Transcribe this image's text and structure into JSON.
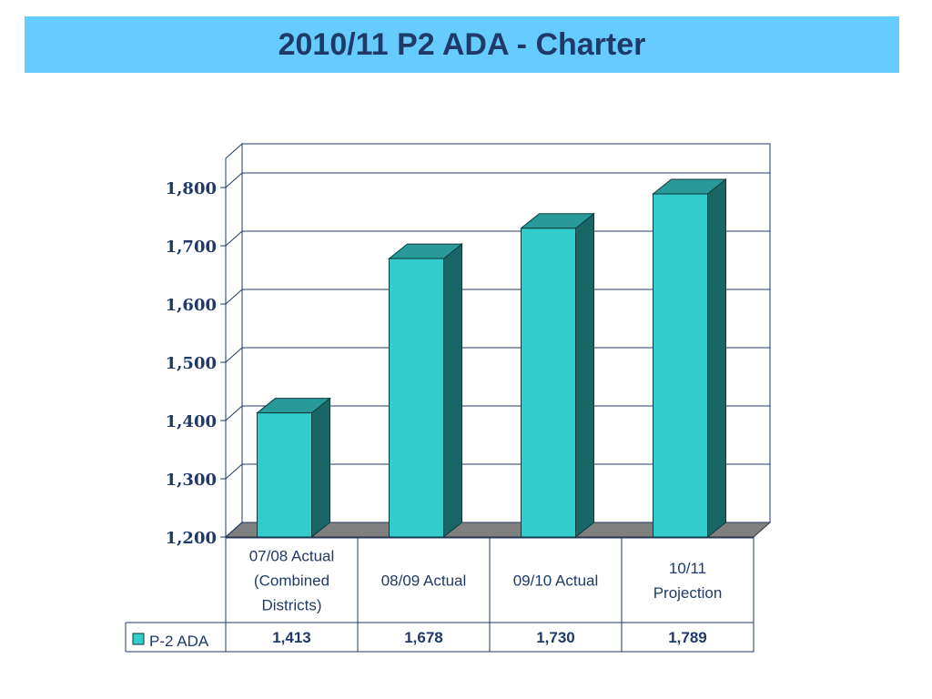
{
  "title": "2010/11 P2 ADA - Charter",
  "colors": {
    "title_bg": "#66ccff",
    "title_text": "#1f3a68",
    "bar_front": "#33cccc",
    "bar_top": "#2a9999",
    "bar_side": "#1a6666",
    "floor": "#808080",
    "grid": "#1f3a68"
  },
  "chart_data": {
    "type": "bar",
    "title": "2010/11 P2 ADA - Charter",
    "categories": [
      [
        "07/08 Actual",
        "(Combined",
        "Districts)"
      ],
      [
        "08/09 Actual"
      ],
      [
        "09/10 Actual"
      ],
      [
        "10/11",
        "Projection"
      ]
    ],
    "series": [
      {
        "name": "P-2 ADA",
        "values": [
          1413,
          1678,
          1730,
          1789
        ],
        "value_labels": [
          "1,413",
          "1,678",
          "1,730",
          "1,789"
        ]
      }
    ],
    "ylim": [
      1200,
      1850
    ],
    "yticks": [
      1200,
      1300,
      1400,
      1500,
      1600,
      1700,
      1800
    ],
    "ytick_labels": [
      "1,200",
      "1,300",
      "1,400",
      "1,500",
      "1,600",
      "1,700",
      "1,800"
    ],
    "grid": true,
    "three_d": true,
    "legend_placement": "data-table-left"
  }
}
